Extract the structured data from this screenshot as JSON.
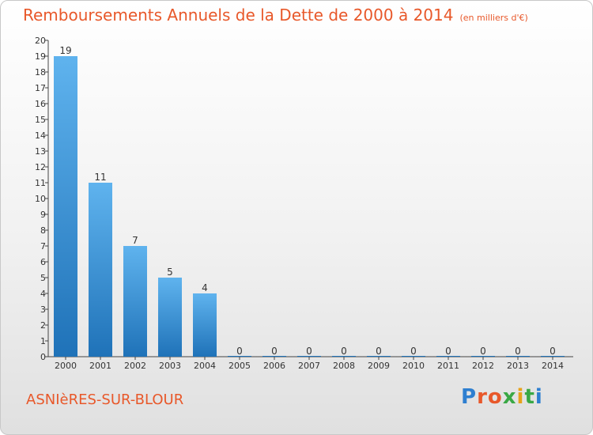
{
  "header": {
    "title": "Remboursements Annuels de la Dette de 2000 à 2014",
    "subtitle": "(en milliers d'€)"
  },
  "footer": {
    "city": "ASNIèRES-SUR-BLOUR",
    "logo": "Proxiti"
  },
  "colors": {
    "accent": "#e8582a",
    "bar_top": "#5fb3ee",
    "bar_bottom": "#1f72b8",
    "logo_letters": [
      "#2e7fd0",
      "#e8582a",
      "#e8582a",
      "#3aa845",
      "#e8a21a",
      "#3aa845",
      "#2e7fd0"
    ]
  },
  "chart_data": {
    "type": "bar",
    "title": "Remboursements Annuels de la Dette de 2000 à 2014",
    "subtitle": "(en milliers d'€)",
    "xlabel": "",
    "ylabel": "",
    "categories": [
      "2000",
      "2001",
      "2002",
      "2003",
      "2004",
      "2005",
      "2006",
      "2007",
      "2008",
      "2009",
      "2010",
      "2011",
      "2012",
      "2013",
      "2014"
    ],
    "values": [
      19,
      11,
      7,
      5,
      4,
      0,
      0,
      0,
      0,
      0,
      0,
      0,
      0,
      0,
      0
    ],
    "ylim": [
      0,
      20
    ],
    "yticks": [
      0,
      1,
      2,
      3,
      4,
      5,
      6,
      7,
      8,
      9,
      10,
      11,
      12,
      13,
      14,
      15,
      16,
      17,
      18,
      19,
      20
    ],
    "grid": false,
    "legend": "none"
  }
}
